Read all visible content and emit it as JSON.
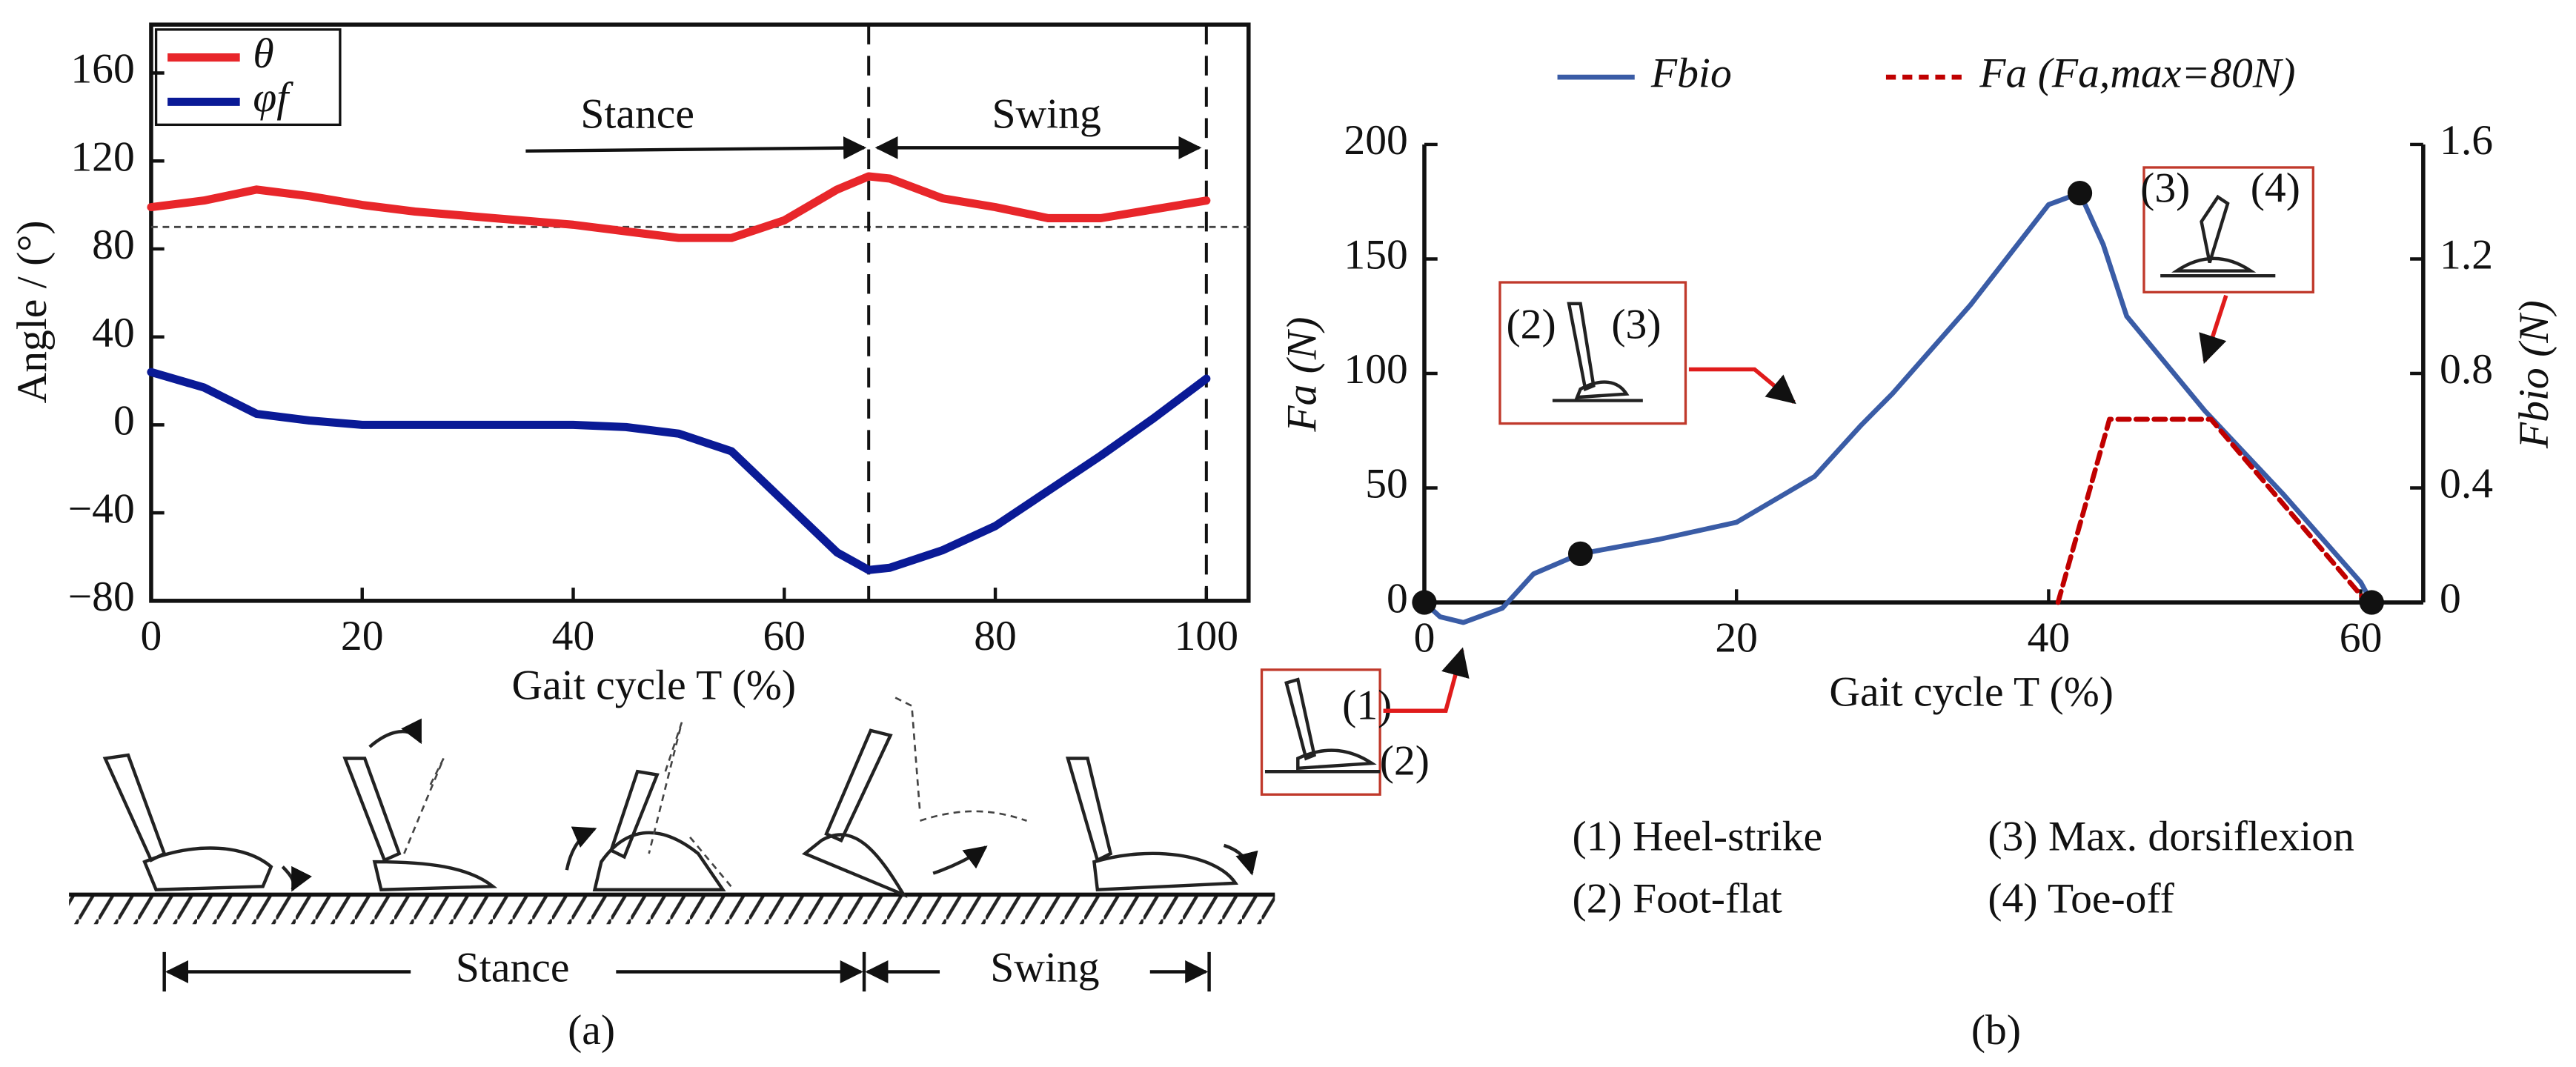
{
  "chart_data": [
    {
      "type": "line",
      "xlabel": "Gait cycle T (%)",
      "ylabel": "Angle / (°)",
      "xlim": [
        0,
        104
      ],
      "ylim": [
        -80,
        182
      ],
      "xticks": [
        0,
        20,
        40,
        60,
        80,
        100
      ],
      "yticks": [
        {
          "value": -80,
          "label": "−80"
        },
        {
          "value": -40,
          "label": "−40"
        },
        0,
        40,
        80,
        120,
        160
      ],
      "x": [
        0,
        5,
        10,
        15,
        20,
        25,
        30,
        35,
        40,
        45,
        50,
        55,
        60,
        65,
        68,
        70,
        75,
        80,
        85,
        90,
        95,
        100
      ],
      "series": [
        {
          "name": "θ",
          "color": "#e8262a",
          "values": [
            99,
            102,
            107,
            104,
            100,
            97,
            95,
            93,
            91,
            88,
            85,
            85,
            93,
            107,
            113,
            112,
            103,
            99,
            94,
            94,
            98,
            102
          ]
        },
        {
          "name": "φf",
          "color": "#0a1a96",
          "values": [
            24,
            17,
            5,
            2,
            0,
            0,
            0,
            0,
            0,
            -1,
            -4,
            -12,
            -35,
            -58,
            -66,
            -65,
            -57,
            -46,
            -30,
            -14,
            3,
            21
          ]
        }
      ],
      "reference_line": 90,
      "phase_lines": [
        68,
        100
      ],
      "legend": "upper left",
      "annotations": [
        "Stance",
        "Swing"
      ],
      "illustration_labels": [
        "Stance",
        "Swing"
      ],
      "caption": "(a)"
    },
    {
      "type": "line",
      "xlabel": "Gait cycle T (%)",
      "ylabel": "Fa (N)",
      "y2label": "Fbio (N)",
      "xlim": [
        0,
        64
      ],
      "ylim": [
        0,
        200
      ],
      "y2lim": [
        0,
        1.6
      ],
      "xticks": [
        0,
        20,
        40,
        60
      ],
      "yticks": [
        0,
        50,
        100,
        150,
        200
      ],
      "y2ticks": [
        0,
        0.4,
        0.8,
        1.2,
        1.6
      ],
      "series": [
        {
          "name": "Fbio",
          "color": "#3a5ca6",
          "axis": "y2",
          "x": [
            0,
            1,
            2.5,
            5,
            7,
            10,
            15,
            20,
            25,
            28,
            30,
            35,
            40,
            42,
            43.5,
            45,
            50,
            55,
            60,
            60.7
          ],
          "values": [
            0,
            -0.05,
            -0.07,
            -0.02,
            0.1,
            0.17,
            0.22,
            0.28,
            0.44,
            0.62,
            0.73,
            1.04,
            1.39,
            1.43,
            1.25,
            1.0,
            0.67,
            0.38,
            0.07,
            0
          ]
        },
        {
          "name": "Fa (Fa,max=80N)",
          "color": "#c00000",
          "dash": true,
          "x": [
            40.6,
            43.9,
            50.4,
            60.4
          ],
          "values": [
            0,
            80,
            80,
            0
          ]
        }
      ],
      "events": {
        "axis": "y2",
        "x": [
          0,
          10,
          42,
          60.7
        ],
        "values": [
          0,
          0.17,
          1.43,
          0
        ]
      },
      "insets": [
        [
          "(1)",
          "(2)"
        ],
        [
          "(2)",
          "(3)"
        ],
        [
          "(3)",
          "(4)"
        ]
      ],
      "phases": [
        "(1) Heel-strike",
        "(2) Foot-flat",
        "(3) Max. dorsiflexion",
        "(4) Toe-off"
      ],
      "legend": "upper center",
      "caption": "(b)"
    }
  ]
}
